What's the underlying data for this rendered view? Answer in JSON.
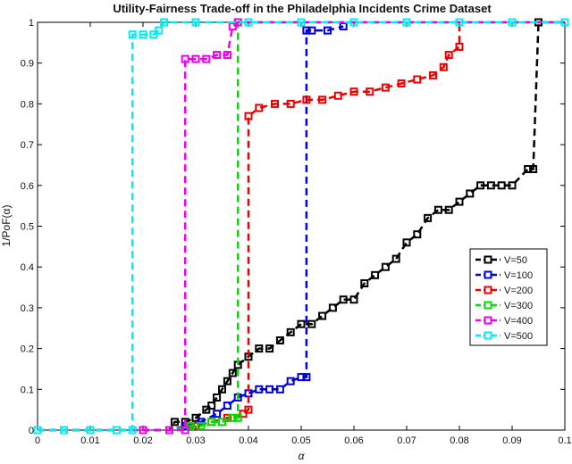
{
  "chart_data": {
    "type": "line",
    "title": "Utility-Fairness Trade-off in the Philadelphia Incidents Crime Dataset",
    "xlabel": "α",
    "ylabel": "1/PoF(α)",
    "xlim": [
      0,
      0.1
    ],
    "ylim": [
      0,
      1
    ],
    "x_ticks": [
      "0",
      "0.01",
      "0.02",
      "0.03",
      "0.04",
      "0.05",
      "0.06",
      "0.07",
      "0.08",
      "0.09",
      "0.1"
    ],
    "y_ticks": [
      "0",
      "0.1",
      "0.2",
      "0.3",
      "0.4",
      "0.5",
      "0.6",
      "0.7",
      "0.8",
      "0.9",
      "1"
    ],
    "x_tick_values": [
      0,
      0.01,
      0.02,
      0.03,
      0.04,
      0.05,
      0.06,
      0.07,
      0.08,
      0.09,
      0.1
    ],
    "y_tick_values": [
      0,
      0.1,
      0.2,
      0.3,
      0.4,
      0.5,
      0.6,
      0.7,
      0.8,
      0.9,
      1
    ],
    "grid": false,
    "legend_position": "right",
    "series": [
      {
        "name": "V=50",
        "color": "#000000",
        "points": [
          [
            0,
            0
          ],
          [
            0.005,
            0
          ],
          [
            0.01,
            0
          ],
          [
            0.015,
            0
          ],
          [
            0.02,
            0
          ],
          [
            0.025,
            0
          ],
          [
            0.026,
            0.02
          ],
          [
            0.028,
            0.02
          ],
          [
            0.03,
            0.03
          ],
          [
            0.032,
            0.05
          ],
          [
            0.033,
            0.06
          ],
          [
            0.034,
            0.08
          ],
          [
            0.035,
            0.1
          ],
          [
            0.036,
            0.12
          ],
          [
            0.037,
            0.14
          ],
          [
            0.038,
            0.16
          ],
          [
            0.04,
            0.18
          ],
          [
            0.042,
            0.2
          ],
          [
            0.044,
            0.2
          ],
          [
            0.046,
            0.22
          ],
          [
            0.048,
            0.24
          ],
          [
            0.05,
            0.26
          ],
          [
            0.052,
            0.26
          ],
          [
            0.054,
            0.28
          ],
          [
            0.056,
            0.3
          ],
          [
            0.058,
            0.32
          ],
          [
            0.06,
            0.32
          ],
          [
            0.062,
            0.36
          ],
          [
            0.064,
            0.38
          ],
          [
            0.066,
            0.4
          ],
          [
            0.068,
            0.42
          ],
          [
            0.07,
            0.46
          ],
          [
            0.072,
            0.48
          ],
          [
            0.074,
            0.52
          ],
          [
            0.076,
            0.54
          ],
          [
            0.078,
            0.54
          ],
          [
            0.08,
            0.56
          ],
          [
            0.082,
            0.58
          ],
          [
            0.084,
            0.6
          ],
          [
            0.086,
            0.6
          ],
          [
            0.088,
            0.6
          ],
          [
            0.09,
            0.6
          ],
          [
            0.093,
            0.64
          ],
          [
            0.094,
            0.64
          ],
          [
            0.095,
            1
          ],
          [
            0.1,
            1
          ]
        ]
      },
      {
        "name": "V=100",
        "color": "#0000dd",
        "points": [
          [
            0,
            0
          ],
          [
            0.005,
            0
          ],
          [
            0.01,
            0
          ],
          [
            0.015,
            0
          ],
          [
            0.02,
            0
          ],
          [
            0.025,
            0
          ],
          [
            0.028,
            0.01
          ],
          [
            0.031,
            0.02
          ],
          [
            0.034,
            0.04
          ],
          [
            0.036,
            0.06
          ],
          [
            0.038,
            0.08
          ],
          [
            0.04,
            0.09
          ],
          [
            0.042,
            0.1
          ],
          [
            0.044,
            0.1
          ],
          [
            0.046,
            0.1
          ],
          [
            0.048,
            0.12
          ],
          [
            0.05,
            0.13
          ],
          [
            0.051,
            0.13
          ],
          [
            0.051,
            0.98
          ],
          [
            0.052,
            0.98
          ],
          [
            0.055,
            0.98
          ],
          [
            0.058,
            0.99
          ]
        ]
      },
      {
        "name": "V=200",
        "color": "#ee0000",
        "points": [
          [
            0,
            0
          ],
          [
            0.005,
            0
          ],
          [
            0.01,
            0
          ],
          [
            0.015,
            0
          ],
          [
            0.02,
            0
          ],
          [
            0.025,
            0
          ],
          [
            0.03,
            0.01
          ],
          [
            0.033,
            0.02
          ],
          [
            0.036,
            0.03
          ],
          [
            0.039,
            0.04
          ],
          [
            0.04,
            0.05
          ],
          [
            0.04,
            0.77
          ],
          [
            0.042,
            0.79
          ],
          [
            0.045,
            0.8
          ],
          [
            0.048,
            0.8
          ],
          [
            0.051,
            0.81
          ],
          [
            0.054,
            0.81
          ],
          [
            0.057,
            0.82
          ],
          [
            0.06,
            0.83
          ],
          [
            0.063,
            0.83
          ],
          [
            0.066,
            0.84
          ],
          [
            0.069,
            0.85
          ],
          [
            0.072,
            0.86
          ],
          [
            0.075,
            0.87
          ],
          [
            0.077,
            0.89
          ],
          [
            0.078,
            0.92
          ],
          [
            0.08,
            0.94
          ],
          [
            0.08,
            1
          ]
        ]
      },
      {
        "name": "V=300",
        "color": "#00dd00",
        "points": [
          [
            0,
            0
          ],
          [
            0.005,
            0
          ],
          [
            0.01,
            0
          ],
          [
            0.015,
            0
          ],
          [
            0.02,
            0
          ],
          [
            0.025,
            0
          ],
          [
            0.029,
            0.01
          ],
          [
            0.031,
            0.01
          ],
          [
            0.033,
            0.02
          ],
          [
            0.035,
            0.02
          ],
          [
            0.037,
            0.03
          ],
          [
            0.038,
            0.03
          ],
          [
            0.038,
            1
          ],
          [
            0.04,
            1
          ],
          [
            0.06,
            1
          ],
          [
            0.08,
            1
          ],
          [
            0.1,
            1
          ]
        ]
      },
      {
        "name": "V=400",
        "color": "#ee00ee",
        "points": [
          [
            0,
            0
          ],
          [
            0.005,
            0
          ],
          [
            0.01,
            0
          ],
          [
            0.015,
            0
          ],
          [
            0.02,
            0
          ],
          [
            0.025,
            0
          ],
          [
            0.028,
            0
          ],
          [
            0.028,
            0.91
          ],
          [
            0.03,
            0.91
          ],
          [
            0.032,
            0.91
          ],
          [
            0.034,
            0.92
          ],
          [
            0.036,
            0.92
          ],
          [
            0.037,
            0.99
          ],
          [
            0.038,
            1
          ],
          [
            0.06,
            1
          ],
          [
            0.08,
            1
          ],
          [
            0.1,
            1
          ]
        ]
      },
      {
        "name": "V=500",
        "color": "#00eeee",
        "points": [
          [
            0,
            0
          ],
          [
            0.005,
            0
          ],
          [
            0.01,
            0
          ],
          [
            0.015,
            0
          ],
          [
            0.018,
            0
          ],
          [
            0.018,
            0.97
          ],
          [
            0.02,
            0.97
          ],
          [
            0.022,
            0.97
          ],
          [
            0.023,
            0.98
          ],
          [
            0.024,
            1
          ],
          [
            0.03,
            1
          ],
          [
            0.04,
            1
          ],
          [
            0.05,
            1
          ],
          [
            0.06,
            1
          ],
          [
            0.07,
            1
          ],
          [
            0.08,
            1
          ],
          [
            0.09,
            1
          ],
          [
            0.1,
            1
          ]
        ]
      }
    ]
  }
}
